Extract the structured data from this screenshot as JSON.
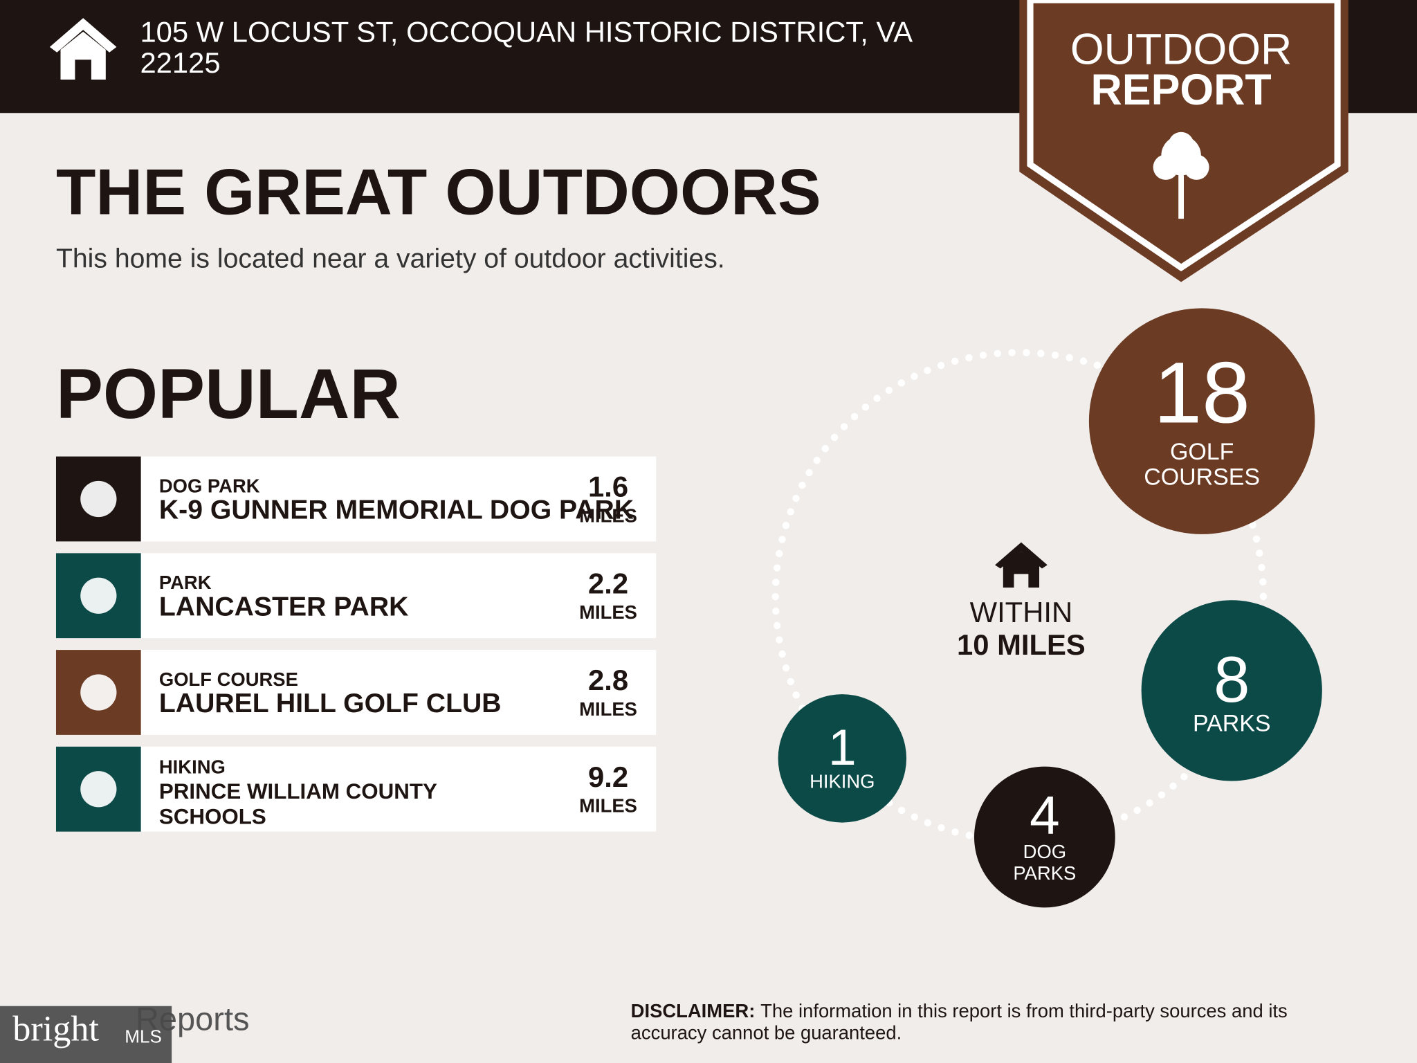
{
  "header": {
    "address_lines": [
      "105 W LOCUST ST, OCCOQUAN HISTORIC DISTRICT, VA",
      "22125"
    ],
    "badge_lines": [
      "OUTDOOR",
      "REPORT"
    ]
  },
  "title": "THE GREAT OUTDOORS",
  "subtitle": "This home is located near a variety of outdoor activities.",
  "popular": {
    "heading": "POPULAR",
    "items": [
      {
        "category": "DOG PARK",
        "name_lines": [
          "K-9 GUNNER MEMORIAL DOG PARK"
        ],
        "distance": "1.6",
        "unit": "MILES"
      },
      {
        "category": "PARK",
        "name_lines": [
          "LANCASTER PARK"
        ],
        "distance": "2.2",
        "unit": "MILES"
      },
      {
        "category": "GOLF COURSE",
        "name_lines": [
          "LAUREL HILL GOLF CLUB"
        ],
        "distance": "2.8",
        "unit": "MILES"
      },
      {
        "category": "HIKING",
        "name_lines": [
          "PRINCE WILLIAM COUNTY",
          "SCHOOLS"
        ],
        "distance": "9.2",
        "unit": "MILES"
      }
    ]
  },
  "summary": {
    "center_lines": [
      "WITHIN",
      "10 MILES"
    ],
    "counts": [
      {
        "number": "18",
        "label_lines": [
          "GOLF",
          "COURSES"
        ]
      },
      {
        "number": "8",
        "label_lines": [
          "PARKS"
        ]
      },
      {
        "number": "1",
        "label_lines": [
          "HIKING"
        ]
      },
      {
        "number": "4",
        "label_lines": [
          "DOG",
          "PARKS"
        ]
      }
    ]
  },
  "footer": {
    "reports": "Reports",
    "logo": "bright",
    "logo_suffix": "MLS",
    "disclaimer_label": "DISCLAIMER:",
    "disclaimer_lines": [
      "The information in this report is from third-party sources and its",
      "accuracy cannot be guaranteed."
    ]
  }
}
